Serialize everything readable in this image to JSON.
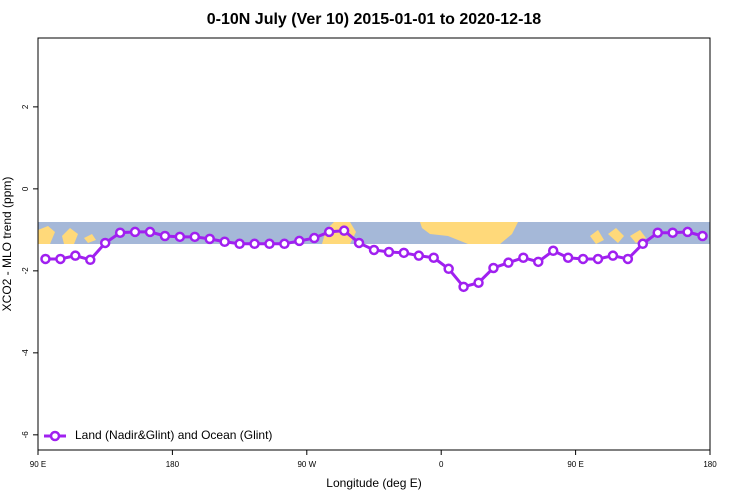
{
  "chart_data": {
    "type": "line",
    "title": "0-10N July (Ver 10)   2015-01-01 to 2020-12-18",
    "x_label": "Longitude (deg E)",
    "y_label": "XCO2 - MLO trend (ppm)",
    "x": [
      95,
      105,
      115,
      125,
      135,
      145,
      155,
      165,
      175,
      185,
      195,
      205,
      215,
      225,
      235,
      245,
      255,
      265,
      275,
      285,
      295,
      305,
      315,
      325,
      335,
      345,
      355,
      365,
      375,
      385,
      395,
      405,
      415,
      425,
      435,
      445,
      455,
      465,
      475,
      485,
      495,
      505,
      515,
      525,
      535
    ],
    "series": [
      {
        "name": "Land (Nadir&Glint) and Ocean (Glint)",
        "color": "#a020f0",
        "values": [
          -1.71,
          -1.71,
          -1.63,
          -1.73,
          -1.32,
          -1.07,
          -1.05,
          -1.05,
          -1.15,
          -1.17,
          -1.17,
          -1.22,
          -1.29,
          -1.34,
          -1.34,
          -1.34,
          -1.34,
          -1.27,
          -1.2,
          -1.05,
          -1.02,
          -1.32,
          -1.49,
          -1.54,
          -1.56,
          -1.63,
          -1.68,
          -1.95,
          -2.39,
          -2.29,
          -1.93,
          -1.8,
          -1.68,
          -1.78,
          -1.51,
          -1.68,
          -1.71,
          -1.71,
          -1.63,
          -1.71,
          -1.34,
          -1.07,
          -1.07,
          -1.05,
          -1.15
        ]
      }
    ],
    "xlim": [
      90,
      540
    ],
    "xticks": [
      {
        "value": 90,
        "label": "90 E"
      },
      180,
      {
        "value": 270,
        "label": "90 W"
      },
      {
        "value": 360,
        "label": "0"
      },
      {
        "value": 450,
        "label": "90 E"
      },
      {
        "value": 540,
        "label": "180"
      }
    ],
    "ylim": [
      -6.37,
      3.68
    ],
    "yticks": [
      2,
      0,
      -2,
      -4,
      -6
    ],
    "legend": "bottom-left"
  }
}
